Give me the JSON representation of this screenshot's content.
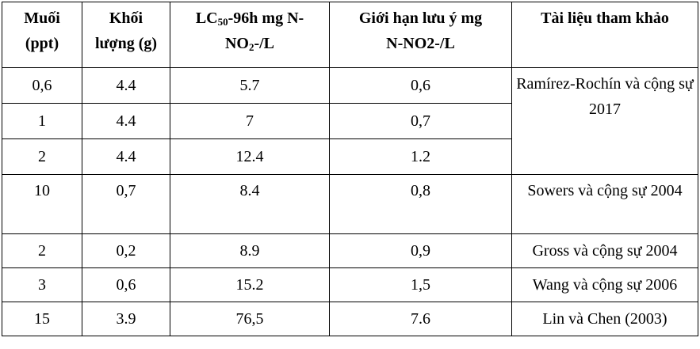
{
  "table": {
    "headers": {
      "salt_line1": "Muối",
      "salt_line2": "(ppt)",
      "weight_line1": "Khối",
      "weight_line2": "lượng (g)",
      "lc50_part1": "LC",
      "lc50_sub": "50",
      "lc50_part2": "-96h mg N-",
      "lc50_line2_part1": "NO",
      "lc50_line2_sub": "2",
      "lc50_line2_part2": "-/L",
      "limit_line1": "Giới hạn lưu ý mg",
      "limit_line2": "N-NO2-/L",
      "reference": "Tài liệu tham khảo"
    },
    "rows": [
      {
        "salt": "0,6",
        "weight": "4.4",
        "lc50": "5.7",
        "limit": "0,6"
      },
      {
        "salt": "1",
        "weight": "4.4",
        "lc50": "7",
        "limit": "0,7"
      },
      {
        "salt": "2",
        "weight": "4.4",
        "lc50": "12.4",
        "limit": "1.2"
      },
      {
        "salt": "10",
        "weight": "0,7",
        "lc50": "8.4",
        "limit": "0,8"
      },
      {
        "salt": "2",
        "weight": "0,2",
        "lc50": "8.9",
        "limit": "0,9"
      },
      {
        "salt": "3",
        "weight": "0,6",
        "lc50": "15.2",
        "limit": "1,5"
      },
      {
        "salt": "15",
        "weight": "3.9",
        "lc50": "76,5",
        "limit": "7.6"
      }
    ],
    "references": {
      "ramirez": "Ramírez-Rochín và cộng sự 2017",
      "sowers": "Sowers và cộng sự 2004",
      "gross": "Gross và cộng sự 2004",
      "wang": "Wang và cộng sự 2006",
      "lin": "Lin và Chen (2003)"
    }
  }
}
